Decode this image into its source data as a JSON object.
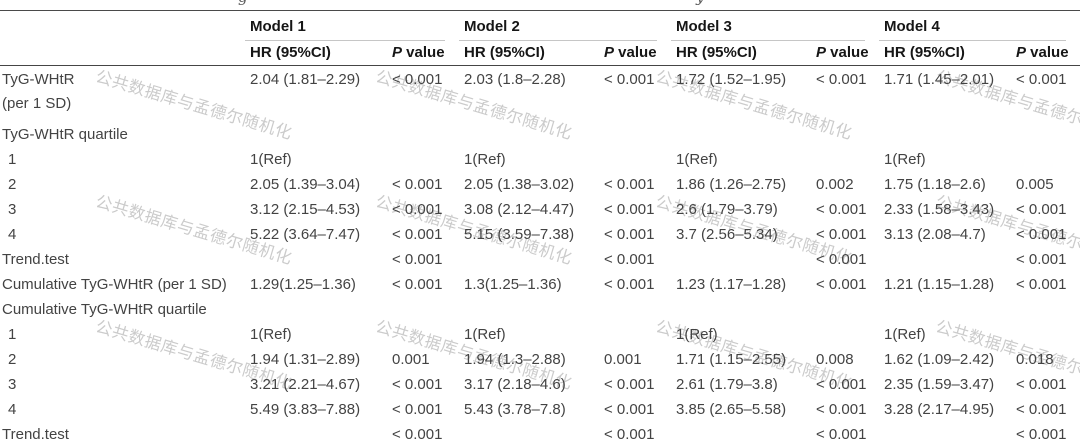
{
  "watermark": {
    "text": "公共数据库与孟德尔随机化",
    "color": "#cbcbcb"
  },
  "top_fragments": {
    "left_char": "g",
    "right_char": "y"
  },
  "table": {
    "models": [
      "Model 1",
      "Model 2",
      "Model 3",
      "Model 4"
    ],
    "subheaders": {
      "hr": "HR (95%CI)",
      "p_italic": "P",
      "p_rest": " value"
    },
    "rows": [
      {
        "type": "data",
        "label": "TyG-WHtR",
        "label2": "(per 1 SD)",
        "cells": [
          [
            "2.04 (1.81–2.29)",
            "< 0.001"
          ],
          [
            "2.03 (1.8–2.28)",
            "< 0.001"
          ],
          [
            "1.72 (1.52–1.95)",
            "< 0.001"
          ],
          [
            "1.71 (1.45–2.01)",
            "< 0.001"
          ]
        ]
      },
      {
        "type": "section",
        "label": "TyG-WHtR quartile"
      },
      {
        "type": "data",
        "label": "1",
        "cells": [
          [
            "1(Ref)",
            ""
          ],
          [
            "1(Ref)",
            ""
          ],
          [
            "1(Ref)",
            ""
          ],
          [
            "1(Ref)",
            ""
          ]
        ]
      },
      {
        "type": "data",
        "label": "2",
        "cells": [
          [
            "2.05 (1.39–3.04)",
            "< 0.001"
          ],
          [
            "2.05 (1.38–3.02)",
            "< 0.001"
          ],
          [
            "1.86 (1.26–2.75)",
            "0.002"
          ],
          [
            "1.75 (1.18–2.6)",
            "0.005"
          ]
        ]
      },
      {
        "type": "data",
        "label": "3",
        "cells": [
          [
            "3.12 (2.15–4.53)",
            "< 0.001"
          ],
          [
            "3.08 (2.12–4.47)",
            "< 0.001"
          ],
          [
            "2.6 (1.79–3.79)",
            "< 0.001"
          ],
          [
            "2.33 (1.58–3.43)",
            "< 0.001"
          ]
        ]
      },
      {
        "type": "data",
        "label": "4",
        "cells": [
          [
            "5.22 (3.64–7.47)",
            "< 0.001"
          ],
          [
            "5.15 (3.59–7.38)",
            "< 0.001"
          ],
          [
            "3.7 (2.56–5.34)",
            "< 0.001"
          ],
          [
            "3.13 (2.08–4.7)",
            "< 0.001"
          ]
        ]
      },
      {
        "type": "data",
        "label": "Trend.test",
        "cells": [
          [
            "",
            "< 0.001"
          ],
          [
            "",
            "< 0.001"
          ],
          [
            "",
            "< 0.001"
          ],
          [
            "",
            "< 0.001"
          ]
        ]
      },
      {
        "type": "data",
        "label": "Cumulative TyG-WHtR (per 1 SD)",
        "cells": [
          [
            "1.29(1.25–1.36)",
            "< 0.001"
          ],
          [
            "1.3(1.25–1.36)",
            "< 0.001"
          ],
          [
            "1.23 (1.17–1.28)",
            "< 0.001"
          ],
          [
            "1.21 (1.15–1.28)",
            "< 0.001"
          ]
        ]
      },
      {
        "type": "section",
        "label": "Cumulative TyG-WHtR quartile"
      },
      {
        "type": "data",
        "label": "1",
        "cells": [
          [
            "1(Ref)",
            ""
          ],
          [
            "1(Ref)",
            ""
          ],
          [
            "1(Ref)",
            ""
          ],
          [
            "1(Ref)",
            ""
          ]
        ]
      },
      {
        "type": "data",
        "label": "2",
        "cells": [
          [
            "1.94 (1.31–2.89)",
            "0.001"
          ],
          [
            "1.94 (1.3–2.88)",
            "0.001"
          ],
          [
            "1.71 (1.15–2.55)",
            "0.008"
          ],
          [
            "1.62 (1.09–2.42)",
            "0.018"
          ]
        ]
      },
      {
        "type": "data",
        "label": "3",
        "cells": [
          [
            "3.21 (2.21–4.67)",
            "< 0.001"
          ],
          [
            "3.17 (2.18–4.6)",
            "< 0.001"
          ],
          [
            "2.61 (1.79–3.8)",
            "< 0.001"
          ],
          [
            "2.35 (1.59–3.47)",
            "< 0.001"
          ]
        ]
      },
      {
        "type": "data",
        "label": "4",
        "cells": [
          [
            "5.49 (3.83–7.88)",
            "< 0.001"
          ],
          [
            "5.43 (3.78–7.8)",
            "< 0.001"
          ],
          [
            "3.85 (2.65–5.58)",
            "< 0.001"
          ],
          [
            "3.28 (2.17–4.95)",
            "< 0.001"
          ]
        ]
      },
      {
        "type": "data",
        "label": "Trend.test",
        "cells": [
          [
            "",
            "< 0.001"
          ],
          [
            "",
            "< 0.001"
          ],
          [
            "",
            "< 0.001"
          ],
          [
            "",
            "< 0.001"
          ]
        ]
      }
    ]
  }
}
